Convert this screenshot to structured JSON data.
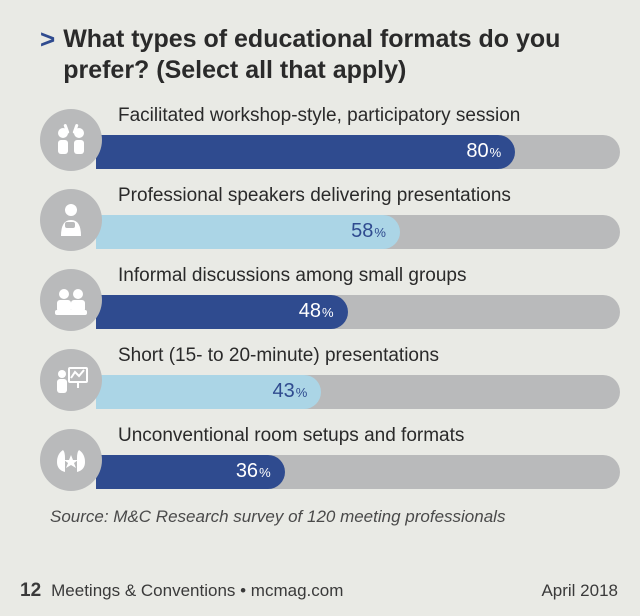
{
  "title": "What types of educational formats do you prefer? (Select all that apply)",
  "chevron": ">",
  "chart": {
    "type": "bar",
    "track_color": "#b9babb",
    "text_on_dark": "#ffffff",
    "text_on_light": "#2f4b8f",
    "max": 100,
    "items": [
      {
        "label": "Facilitated workshop-style, participatory session",
        "value": 80,
        "fill_color": "#2f4b8f",
        "value_color": "#ffffff",
        "icon": "highfive"
      },
      {
        "label": "Professional speakers delivering presentations",
        "value": 58,
        "fill_color": "#abd5e6",
        "value_color": "#2f4b8f",
        "icon": "speaker"
      },
      {
        "label": "Informal discussions among small groups",
        "value": 48,
        "fill_color": "#2f4b8f",
        "value_color": "#ffffff",
        "icon": "group"
      },
      {
        "label": "Short (15- to 20-minute) presentations",
        "value": 43,
        "fill_color": "#abd5e6",
        "value_color": "#2f4b8f",
        "icon": "board"
      },
      {
        "label": "Unconventional room setups and formats",
        "value": 36,
        "fill_color": "#2f4b8f",
        "value_color": "#ffffff",
        "icon": "hands"
      }
    ]
  },
  "source": "Source: M&C Research survey of 120 meeting professionals",
  "footer": {
    "page": "12",
    "publication": "Meetings & Conventions • mcmag.com",
    "date": "April 2018"
  },
  "icons_svg": {
    "highfive": "<g fill='#ffffff'><circle cx='12' cy='13' r='5'/><circle cx='28' cy='13' r='5'/><rect x='7' y='20' width='10' height='14' rx='3'/><rect x='23' y='20' width='10' height='14' rx='3'/><rect x='14' y='4' width='3' height='10' rx='1.5' transform='rotate(-20 15 9)'/><rect x='23' y='4' width='3' height='10' rx='1.5' transform='rotate(20 25 9)'/></g>",
    "speaker": "<g fill='#ffffff'><circle cx='20' cy='10' r='6'/><path d='M10 36 Q10 20 20 20 Q30 20 30 36 Z'/><rect x='14' y='22' width='10' height='6' rx='2' fill='#b9babb'/></g>",
    "group": "<g fill='#ffffff'><circle cx='13' cy='14' r='5'/><circle cx='27' cy='14' r='5'/><rect x='6' y='20' width='14' height='12' rx='3'/><rect x='20' y='20' width='14' height='12' rx='3'/><rect x='4' y='30' width='32' height='5' rx='2'/></g>",
    "board": "<g fill='#ffffff'><circle cx='11' cy='14' r='4'/><rect x='6' y='19' width='10' height='14' rx='3'/><rect x='18' y='8' width='18' height='14' rx='1' fill='none' stroke='#ffffff' stroke-width='2'/><path d='M20 18 L24 12 L28 16 L33 10' stroke='#ffffff' stroke-width='2' fill='none'/><line x1='27' y1='22' x2='27' y2='28' stroke='#ffffff' stroke-width='2'/></g>",
    "hands": "<g fill='#ffffff'><path d='M12 10 Q6 14 6 22 Q6 30 14 32 L14 18 Q14 12 12 10 Z'/><path d='M28 10 Q34 14 34 22 Q34 30 26 32 L26 18 Q26 12 28 10 Z'/><polygon points='20,15 22,20 27,20 23,23 25,28 20,25 15,28 17,23 13,20 18,20'/></g>"
  }
}
